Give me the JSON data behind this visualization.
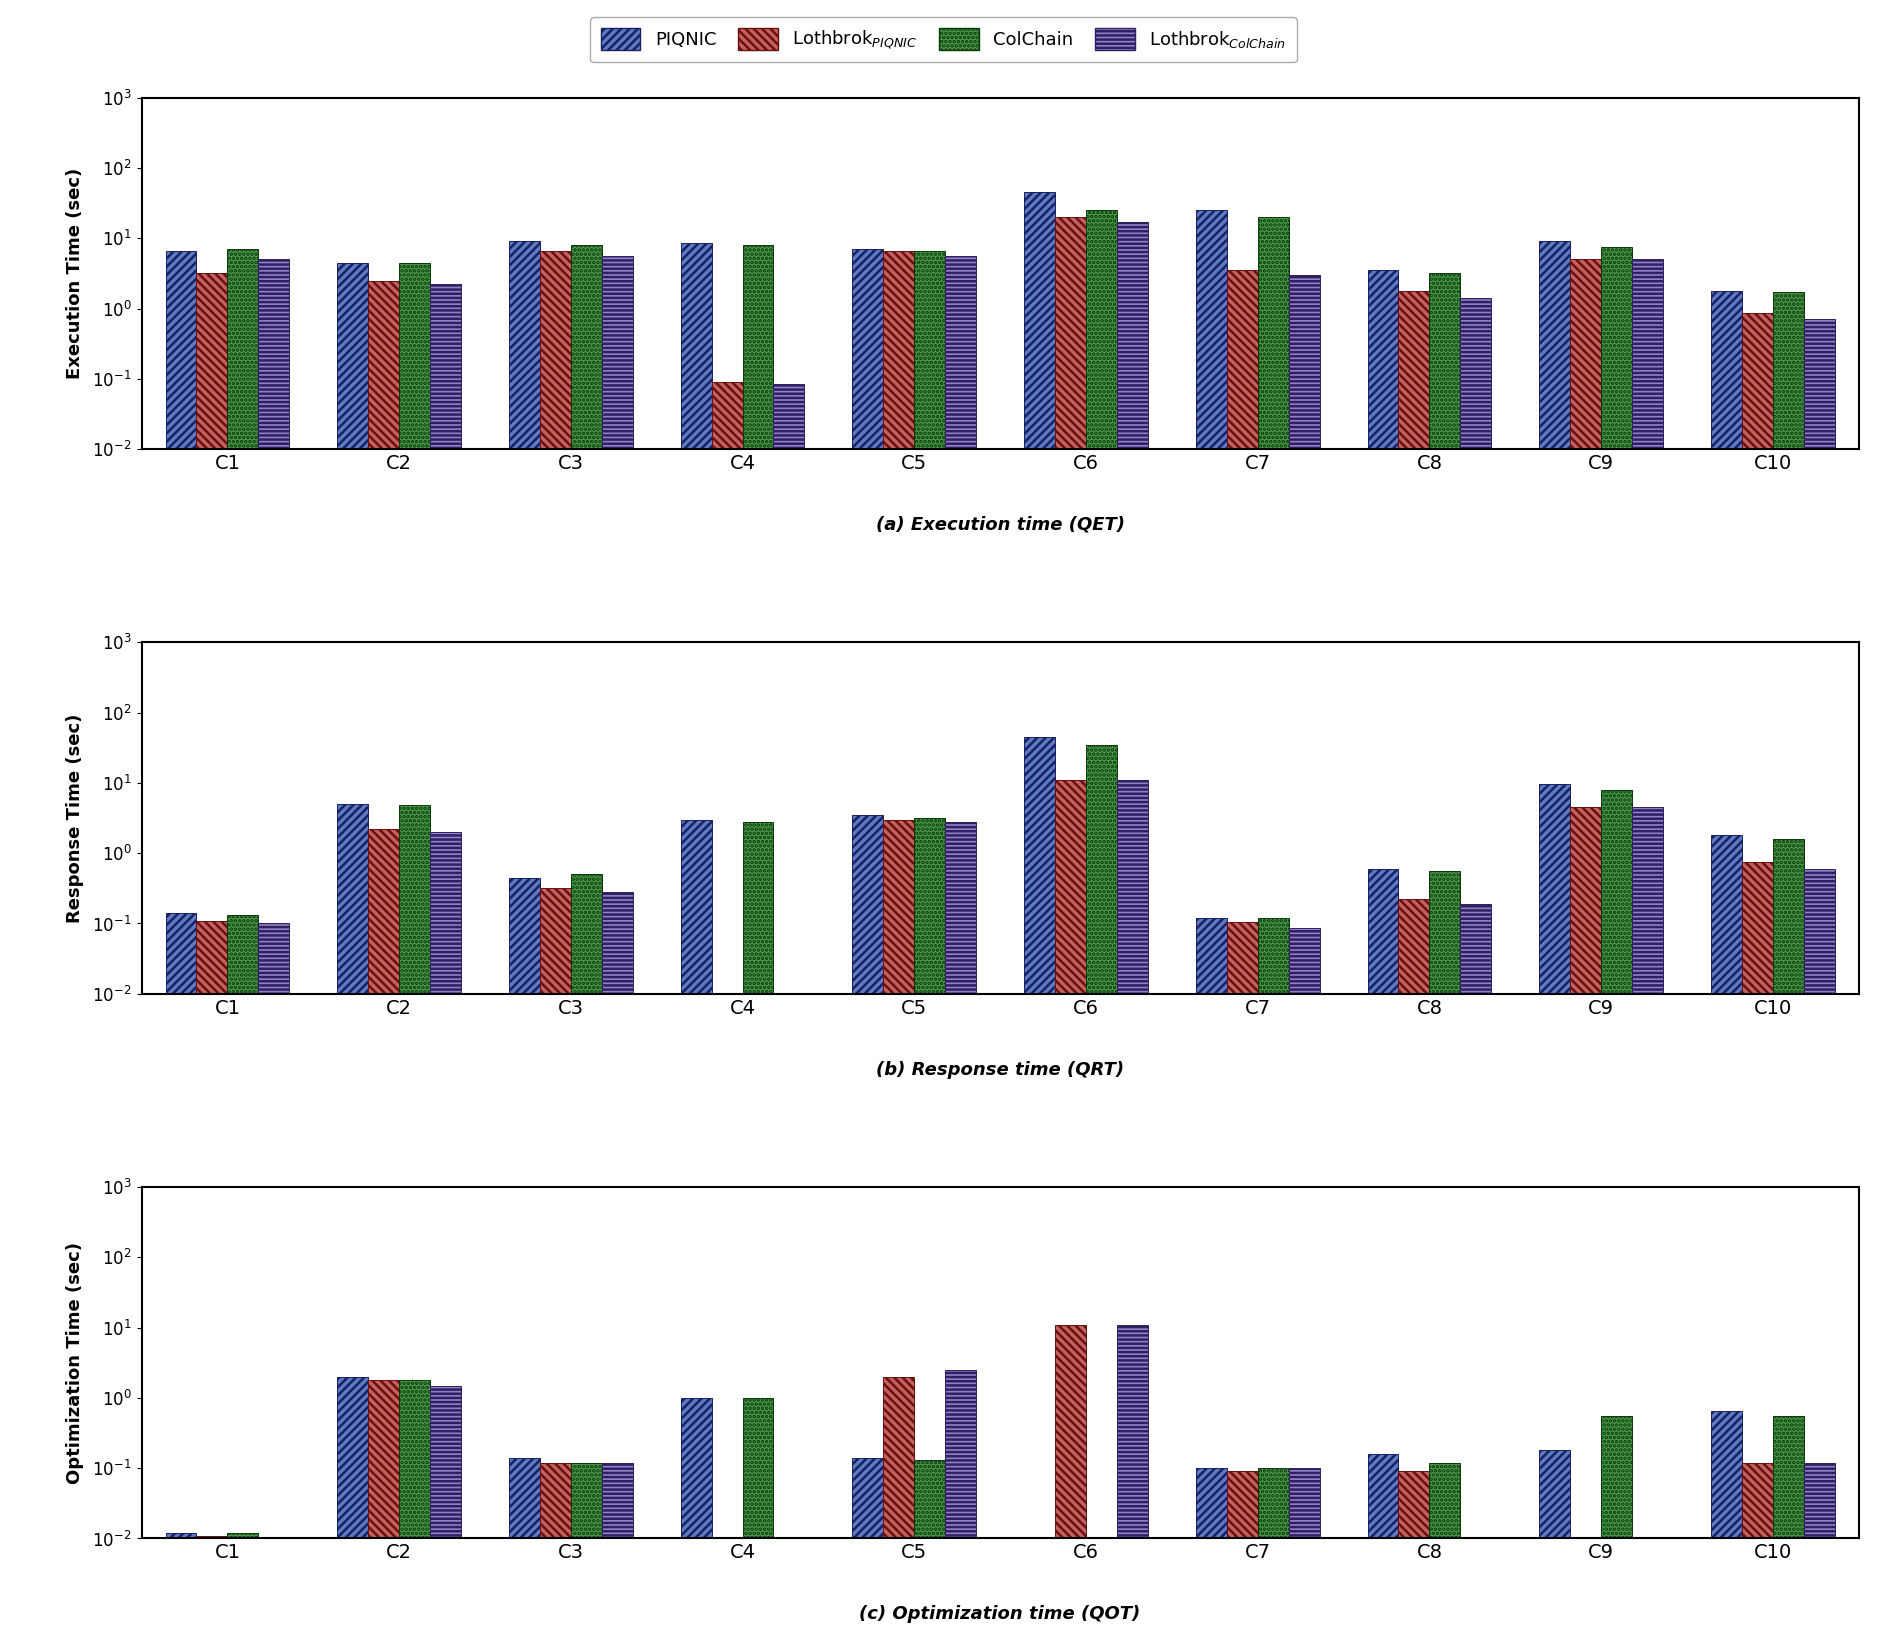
{
  "categories": [
    "C1",
    "C2",
    "C3",
    "C4",
    "C5",
    "C6",
    "C7",
    "C8",
    "C9",
    "C10"
  ],
  "QET": {
    "PIQNIC": [
      6.5,
      4.5,
      9.0,
      8.5,
      7.0,
      45.0,
      25.0,
      3.5,
      9.0,
      1.8
    ],
    "Lothbrok_PIQNIC": [
      3.2,
      2.5,
      6.5,
      0.09,
      6.5,
      20.0,
      3.5,
      1.8,
      5.0,
      0.85
    ],
    "ColChain": [
      7.0,
      4.5,
      8.0,
      8.0,
      6.5,
      25.0,
      20.0,
      3.2,
      7.5,
      1.7
    ],
    "Lothbrok_ColChain": [
      5.0,
      2.2,
      5.5,
      0.085,
      5.5,
      17.0,
      3.0,
      1.4,
      5.0,
      0.7
    ]
  },
  "QRT": {
    "PIQNIC": [
      0.14,
      5.0,
      0.45,
      3.0,
      3.5,
      45.0,
      0.12,
      0.6,
      9.5,
      1.8
    ],
    "Lothbrok_PIQNIC": [
      0.11,
      2.2,
      0.32,
      null,
      3.0,
      11.0,
      0.105,
      0.22,
      4.5,
      0.75
    ],
    "ColChain": [
      0.13,
      4.8,
      0.5,
      2.8,
      3.2,
      35.0,
      0.12,
      0.55,
      8.0,
      1.6
    ],
    "Lothbrok_ColChain": [
      0.1,
      2.0,
      0.28,
      null,
      2.8,
      11.0,
      0.085,
      0.19,
      4.5,
      0.6
    ]
  },
  "QOT": {
    "PIQNIC": [
      0.012,
      2.0,
      0.14,
      1.0,
      0.14,
      null,
      0.1,
      0.16,
      0.18,
      0.65
    ],
    "Lothbrok_PIQNIC": [
      0.011,
      1.8,
      0.12,
      null,
      2.0,
      11.0,
      0.09,
      0.09,
      null,
      0.12
    ],
    "ColChain": [
      0.012,
      1.8,
      0.12,
      1.0,
      0.13,
      null,
      0.1,
      0.12,
      0.55,
      0.55
    ],
    "Lothbrok_ColChain": [
      null,
      1.5,
      0.12,
      null,
      2.5,
      11.0,
      0.1,
      null,
      null,
      0.12
    ]
  },
  "bar_styles": [
    {
      "facecolor": "#5b7bc4",
      "edgecolor": "#1a2060",
      "hatch": "////",
      "label": "PIQNIC"
    },
    {
      "facecolor": "#c56060",
      "edgecolor": "#6a1010",
      "hatch": "\\\\\\\\",
      "label": "Lothbrok$_{PIQNIC}$"
    },
    {
      "facecolor": "#4a9a4a",
      "edgecolor": "#0a3a0a",
      "hatch": "....",
      "label": "ColChain"
    },
    {
      "facecolor": "#9080c8",
      "edgecolor": "#302060",
      "hatch": "----",
      "label": "Lothbrok$_{ColChain}$"
    }
  ],
  "series_keys": [
    "PIQNIC",
    "Lothbrok_PIQNIC",
    "ColChain",
    "Lothbrok_ColChain"
  ],
  "charts": [
    "QET",
    "QRT",
    "QOT"
  ],
  "ylabels": [
    "Execution Time (sec)",
    "Response Time (sec)",
    "Optimization Time (sec)"
  ],
  "captions": [
    "(a) Execution time (QET)",
    "(b) Response time (QRT)",
    "(c) Optimization time (QOT)"
  ],
  "ylim": [
    0.01,
    1000
  ],
  "bar_width": 0.18,
  "figsize": [
    18.87,
    16.28
  ],
  "dpi": 100
}
